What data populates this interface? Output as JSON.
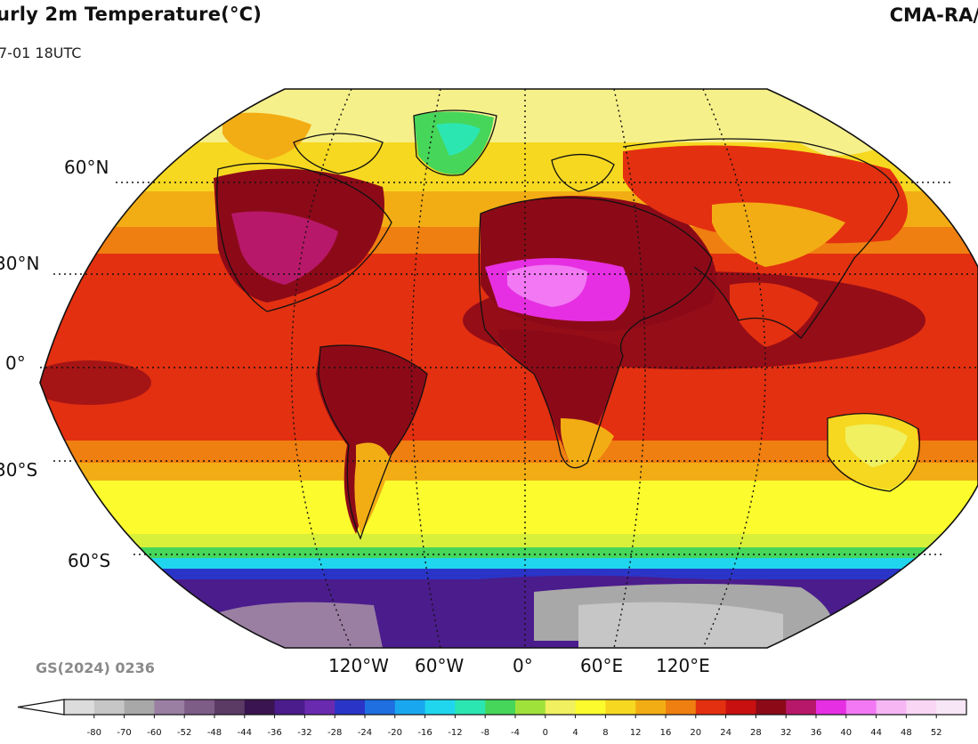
{
  "header": {
    "title": "urly 2m Temperature(°C)",
    "subtitle": "7-01 18UTC",
    "brand": "CMA-RA/"
  },
  "map": {
    "approval_number": "GS(2024) 0236",
    "lat_labels": [
      "60°N",
      "30°N",
      "0°",
      "30°S",
      "60°S"
    ],
    "lon_labels": [
      "120°W",
      "60°W",
      "0°",
      "60°E",
      "120°E"
    ]
  },
  "colorbar": {
    "ticks": [
      "-80",
      "-70",
      "-60",
      "-52",
      "-48",
      "-44",
      "-36",
      "-32",
      "-28",
      "-24",
      "-20",
      "-16",
      "-12",
      "-8",
      "-4",
      "0",
      "4",
      "8",
      "12",
      "16",
      "20",
      "24",
      "28",
      "32",
      "36",
      "40",
      "44",
      "48",
      "52"
    ],
    "colors": [
      "#dcdcdc",
      "#c6c6c6",
      "#a8a8a8",
      "#9a7fa3",
      "#7d5c86",
      "#5b3a64",
      "#3a1450",
      "#4b1c8c",
      "#6a2ab0",
      "#2a35c8",
      "#1f6fe0",
      "#19a8f0",
      "#20d6ee",
      "#2ce6b2",
      "#46d65a",
      "#9fe23a",
      "#f0f060",
      "#fbfb2e",
      "#f6d820",
      "#f3ad14",
      "#ef7f10",
      "#e33010",
      "#c81010",
      "#8c0a18",
      "#b8186a",
      "#e62fe2",
      "#f278f4",
      "#f6b6f4",
      "#f9d6f4",
      "#f7e6f5"
    ]
  }
}
